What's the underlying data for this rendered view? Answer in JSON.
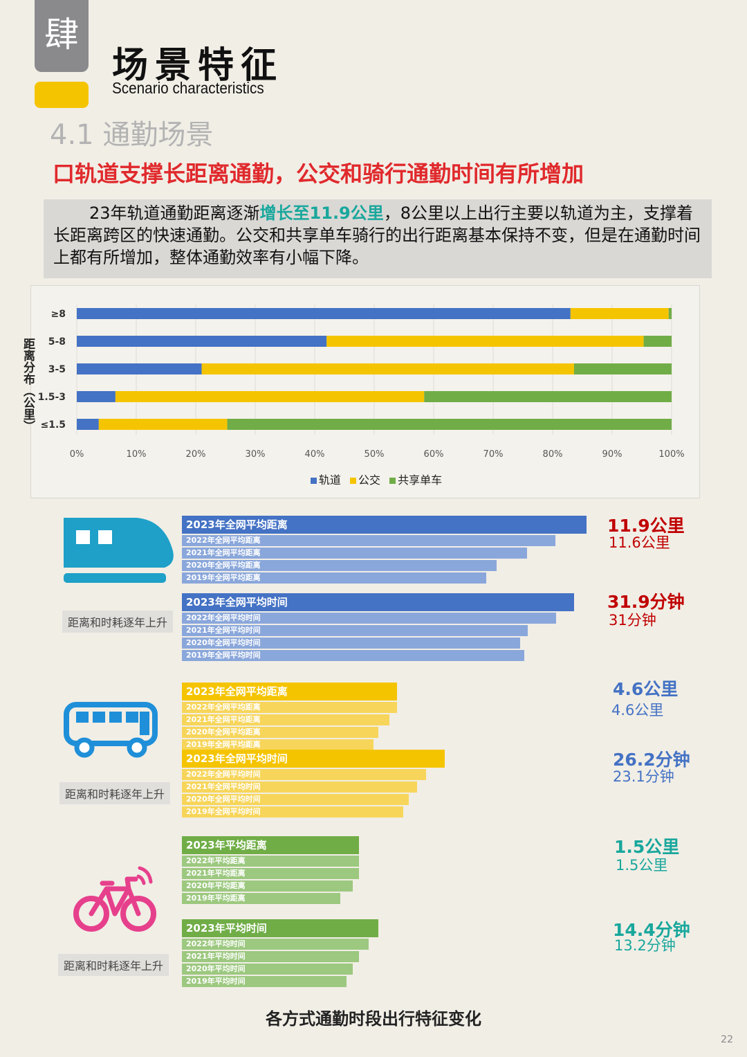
{
  "header": {
    "badge": "肆",
    "title_cn": "场景特征",
    "title_en": "Scenario characteristics",
    "section": "4.1 通勤场景",
    "headline": "口轨道支撑长距离通勤，公交和骑行通勤时间有所增加"
  },
  "summary": {
    "part1": "23年轨道通勤距离逐渐",
    "highlight": "增长至11.9公里",
    "part2": "，8公里以上出行主要以轨道为主，支撑着长距离跨区的快速通勤。公交和共享单车骑行的出行距离基本保持不变，但是在通勤时间上都有所增加，整体通勤效率有小幅下降。"
  },
  "chart_data": {
    "type": "bar",
    "orientation": "horizontal",
    "stacked": true,
    "ylabel": "距离分布（公里）",
    "categories": [
      "≥8",
      "5-8",
      "3-5",
      "1.5-3",
      "≤1.5"
    ],
    "series": [
      {
        "name": "轨道",
        "color": "#4472c4",
        "values": [
          83,
          42,
          21,
          6.5,
          3.7
        ]
      },
      {
        "name": "公交",
        "color": "#f5c400",
        "values": [
          16.5,
          53.3,
          62.6,
          51.9,
          21.6
        ]
      },
      {
        "name": "共享单车",
        "color": "#70ad47",
        "values": [
          0.5,
          4.7,
          16.4,
          41.6,
          74.7
        ]
      }
    ],
    "xticks": [
      "0%",
      "10%",
      "20%",
      "30%",
      "40%",
      "50%",
      "60%",
      "70%",
      "80%",
      "90%",
      "100%"
    ],
    "xlim": [
      0,
      100
    ],
    "legend": "bottom"
  },
  "modes": {
    "rail": {
      "caption": "距离和时耗逐年上升",
      "distance_labels": [
        "2023年全网平均距离",
        "2022年全网平均距离",
        "2021年全网平均距离",
        "2020年全网平均距离",
        "2019年全网平均距离"
      ],
      "time_labels": [
        "2023年全网平均时间",
        "2022年全网平均时间",
        "2021年全网平均时间",
        "2020年全网平均时间",
        "2019年全网平均时间"
      ],
      "dist_value": "11.9公里",
      "dist_prev": "11.6公里",
      "time_value": "31.9分钟",
      "time_prev": "31分钟"
    },
    "bus": {
      "caption": "距离和时耗逐年上升",
      "distance_labels": [
        "2023年全网平均距离",
        "2022年全网平均距离",
        "2021年全网平均距离",
        "2020年全网平均距离",
        "2019年全网平均距离"
      ],
      "time_labels": [
        "2023年全网平均时间",
        "2022年全网平均时间",
        "2021年全网平均时间",
        "2020年全网平均时间",
        "2019年全网平均时间"
      ],
      "dist_value": "4.6公里",
      "dist_prev": "4.6公里",
      "time_value": "26.2分钟",
      "time_prev": "23.1分钟"
    },
    "bike": {
      "caption": "距离和时耗逐年上升",
      "distance_labels": [
        "2023年平均距离",
        "2022年平均距离",
        "2021年平均距离",
        "2020年平均距离",
        "2019年平均距离"
      ],
      "time_labels": [
        "2023年平均时间",
        "2022年平均时间",
        "2021年平均时间",
        "2020年平均时间",
        "2019年平均时间"
      ],
      "dist_value": "1.5公里",
      "dist_prev": "1.5公里",
      "time_value": "14.4分钟",
      "time_prev": "13.2分钟"
    }
  },
  "colors": {
    "rail_main": "#4472c4",
    "rail_sub": "#8aa7db",
    "rail_value": "#c00000",
    "bus_main": "#f5c400",
    "bus_sub": "#f7d55a",
    "bus_value": "#4472c4",
    "bike_main": "#70ad47",
    "bike_sub": "#9cc87f",
    "bike_value": "#19a79c",
    "rail_icon": "#1ea0c8",
    "bus_icon": "#1e8fd8",
    "bike_icon": "#e6408c"
  },
  "footer": {
    "figure_title": "各方式通勤时段出行特征变化",
    "page": "22"
  }
}
